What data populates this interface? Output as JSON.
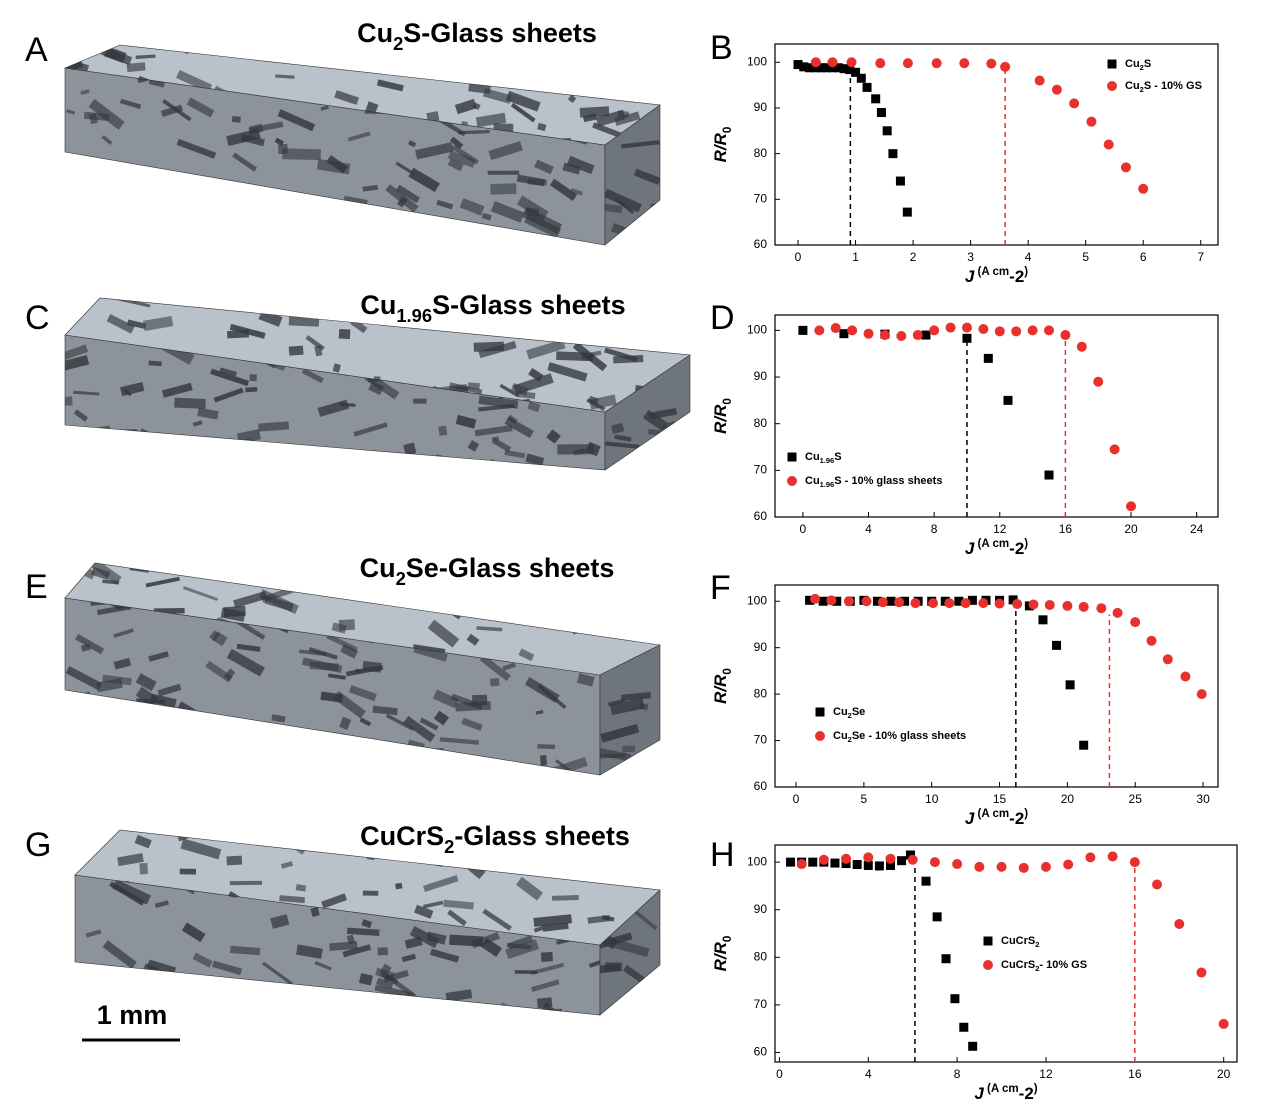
{
  "panels": [
    {
      "letter": "A",
      "title": [
        "Cu",
        "2",
        "S-Glass sheets"
      ]
    },
    {
      "letter": "C",
      "title": [
        "Cu",
        "1.96",
        "S-Glass sheets"
      ]
    },
    {
      "letter": "E",
      "title": [
        "Cu",
        "2",
        "Se-Glass sheets"
      ]
    },
    {
      "letter": "G",
      "title": [
        "CuCrS",
        "2",
        "-Glass sheets"
      ]
    }
  ],
  "scale_bar": "1 mm",
  "chart_data": [
    {
      "type": "scatter",
      "label": "B",
      "xlabel": [
        "J",
        " (A cm",
        "-2",
        ")"
      ],
      "ylabel": [
        "R/R",
        "0"
      ],
      "xlim": [
        -0.4,
        7.3
      ],
      "ylim": [
        60,
        104
      ],
      "xticks": [
        0,
        1,
        2,
        3,
        4,
        5,
        6,
        7
      ],
      "yticks": [
        60,
        70,
        80,
        90,
        100
      ],
      "legend": "upper right",
      "series": [
        {
          "name": [
            "Cu",
            "2",
            "S"
          ],
          "color": "#000000",
          "marker": "square",
          "threshold": 0.91,
          "x": [
            0,
            0.1,
            0.2,
            0.3,
            0.4,
            0.5,
            0.6,
            0.7,
            0.8,
            0.9,
            1.0,
            1.1,
            1.2,
            1.35,
            1.45,
            1.55,
            1.65,
            1.78,
            1.9
          ],
          "values": [
            99.5,
            99,
            98.8,
            98.8,
            98.8,
            98.8,
            98.8,
            98.8,
            98.6,
            98.4,
            97.8,
            96.5,
            94.5,
            92,
            89,
            85,
            80,
            74,
            67.2
          ]
        },
        {
          "name": [
            "Cu",
            "2",
            "S - 10%  GS"
          ],
          "color": "#e8312f",
          "marker": "circle",
          "threshold": 3.6,
          "x": [
            0.31,
            0.6,
            0.93,
            1.43,
            1.91,
            2.41,
            2.89,
            3.36,
            3.6,
            4.2,
            4.5,
            4.8,
            5.1,
            5.4,
            5.7,
            6.0
          ],
          "values": [
            100,
            100,
            100,
            99.8,
            99.8,
            99.8,
            99.8,
            99.7,
            99,
            96,
            94,
            91,
            87,
            82,
            77,
            72.3
          ]
        }
      ]
    },
    {
      "type": "scatter",
      "label": "D",
      "xlabel": [
        "J",
        " (A cm",
        "-2",
        ")"
      ],
      "ylabel": [
        "R/R",
        "0"
      ],
      "xlim": [
        -1.7,
        25.3
      ],
      "ylim": [
        60,
        103.3
      ],
      "xticks": [
        0,
        4,
        8,
        12,
        16,
        20,
        24
      ],
      "yticks": [
        60,
        70,
        80,
        90,
        100
      ],
      "legend": "lower left",
      "series": [
        {
          "name": [
            "Cu",
            "1.96",
            "S"
          ],
          "color": "#000000",
          "marker": "square",
          "threshold": 10,
          "x": [
            0,
            2.5,
            5,
            7.5,
            10,
            11.3,
            12.5,
            15
          ],
          "values": [
            100,
            99.3,
            99.2,
            99,
            98.3,
            94,
            85,
            69
          ]
        },
        {
          "name": [
            "Cu",
            "1.96",
            "S - 10%  glass sheets"
          ],
          "color": "#e8312f",
          "marker": "circle",
          "threshold": 16,
          "x": [
            1,
            2,
            3,
            4,
            5,
            6,
            7,
            8,
            9,
            10,
            11,
            12,
            13,
            14,
            15,
            16,
            17,
            18,
            19,
            20
          ],
          "values": [
            100,
            100.5,
            100,
            99.3,
            99,
            98.8,
            99,
            100,
            100.6,
            100.6,
            100.3,
            99.8,
            99.8,
            100,
            100,
            99,
            96.5,
            89,
            74.5,
            62.3
          ]
        }
      ]
    },
    {
      "type": "scatter",
      "label": "F",
      "xlabel": [
        "J",
        " (A cm",
        "-2",
        ")"
      ],
      "ylabel": [
        "R/R",
        "0"
      ],
      "xlim": [
        -1.55,
        31.1
      ],
      "ylim": [
        60,
        103.5
      ],
      "xticks": [
        0,
        5,
        10,
        15,
        20,
        25,
        30
      ],
      "yticks": [
        60,
        70,
        80,
        90,
        100
      ],
      "legend": "lower left",
      "series": [
        {
          "name": [
            "Cu",
            "2",
            "Se"
          ],
          "color": "#000000",
          "marker": "square",
          "threshold": 16.2,
          "x": [
            1,
            2,
            3,
            4,
            5,
            6,
            7,
            8,
            9,
            10,
            11,
            12,
            13,
            14,
            15,
            16,
            17.2,
            18.2,
            19.2,
            20.2,
            21.2
          ],
          "values": [
            100.2,
            100,
            100,
            100,
            100.2,
            100,
            100,
            100,
            100,
            100,
            100,
            100,
            100.2,
            100.2,
            100.2,
            100.3,
            99,
            96,
            90.5,
            82,
            69
          ]
        },
        {
          "name": [
            "Cu",
            "2",
            "Se - 10%  glass sheets"
          ],
          "color": "#e8312f",
          "marker": "circle",
          "threshold": 23.1,
          "x": [
            1.4,
            2.6,
            3.9,
            5.2,
            6.4,
            7.6,
            8.8,
            10.1,
            11.3,
            12.5,
            13.8,
            15,
            16.3,
            17.5,
            18.7,
            20,
            21.2,
            22.5,
            23.7,
            25,
            26.2,
            27.4,
            28.7,
            29.9
          ],
          "values": [
            100.5,
            100.2,
            100,
            100,
            99.8,
            99.8,
            99.6,
            99.6,
            99.6,
            99.6,
            99.6,
            99.5,
            99.4,
            99.3,
            99.2,
            99,
            98.8,
            98.5,
            97.5,
            95.5,
            91.5,
            87.5,
            83.8,
            80
          ]
        }
      ]
    },
    {
      "type": "scatter",
      "label": "H",
      "xlabel": [
        "J",
        " (A cm",
        "-2",
        ")"
      ],
      "ylabel": [
        "R/R",
        "0"
      ],
      "xlim": [
        -0.2,
        20.6
      ],
      "ylim": [
        58,
        103.6
      ],
      "xticks": [
        0,
        4,
        8,
        12,
        16,
        20
      ],
      "yticks": [
        60,
        70,
        80,
        90,
        100
      ],
      "legend": "center",
      "series": [
        {
          "name": [
            "CuCrS",
            "2"
          ],
          "color": "#000000",
          "marker": "square",
          "threshold": 6.1,
          "x": [
            0.5,
            1,
            1.5,
            2,
            2.5,
            3,
            3.5,
            4,
            4.5,
            5,
            5.5,
            5.9,
            6.6,
            7.1,
            7.5,
            7.9,
            8.3,
            8.7
          ],
          "values": [
            100,
            100,
            100,
            100,
            99.8,
            99.7,
            99.5,
            99.3,
            99.2,
            99.3,
            100.3,
            101.5,
            96,
            88.5,
            79.7,
            71.3,
            65.3,
            61.3
          ]
        },
        {
          "name": [
            "CuCrS",
            "2",
            "- 10%  GS"
          ],
          "color": "#e8312f",
          "marker": "circle",
          "threshold": 16,
          "x": [
            1,
            2,
            3,
            4,
            5,
            6,
            7,
            8,
            9,
            10,
            11,
            12,
            13,
            14,
            15,
            16,
            17,
            18,
            19,
            20
          ],
          "values": [
            99.6,
            100.5,
            100.7,
            101,
            100.7,
            100.5,
            100,
            99.6,
            99,
            99,
            98.8,
            99,
            99.5,
            101,
            101.2,
            100,
            95.3,
            87,
            76.8,
            66
          ]
        }
      ]
    }
  ]
}
